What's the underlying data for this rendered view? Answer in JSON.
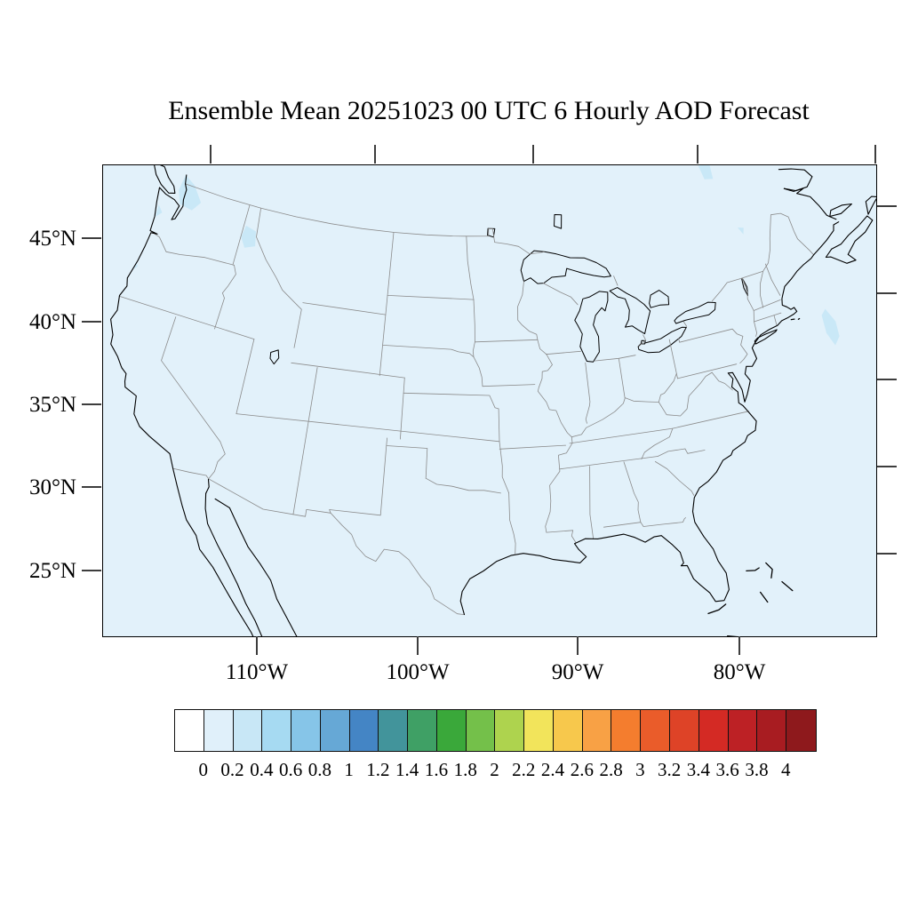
{
  "title": "Ensemble Mean 20251023 00 UTC 6 Hourly AOD Forecast",
  "map": {
    "lat_labels": [
      "45°N",
      "40°N",
      "35°N",
      "30°N",
      "25°N"
    ],
    "lon_labels": [
      "110°W",
      "100°W",
      "90°W",
      "80°W"
    ],
    "field_name": "AOD",
    "field_colors": {
      "aod_0_to_0.2": "#e2f1fa",
      "aod_0.2_to_0.4": "#c9e8f7",
      "coastline": "#000000",
      "state_border": "#8b8b8b",
      "tick": "#3d3d3d",
      "frame": "#000000"
    }
  },
  "colorbar": {
    "tick_labels": [
      "0",
      "0.2",
      "0.4",
      "0.6",
      "0.8",
      "1",
      "1.2",
      "1.4",
      "1.6",
      "1.8",
      "2",
      "2.2",
      "2.4",
      "2.6",
      "2.8",
      "3",
      "3.2",
      "3.4",
      "3.6",
      "3.8",
      "4"
    ],
    "colors": [
      "#ffffff",
      "#e0f0fa",
      "#c8e7f6",
      "#a6daf2",
      "#86c5e8",
      "#66a8d6",
      "#4485c5",
      "#42949b",
      "#3fa065",
      "#3aa83a",
      "#74c04a",
      "#aed34e",
      "#f2e45b",
      "#f7c84c",
      "#f8a145",
      "#f47d2e",
      "#ea5c2a",
      "#de4327",
      "#d42a24",
      "#bd2125",
      "#a81c21",
      "#8e191c"
    ]
  }
}
